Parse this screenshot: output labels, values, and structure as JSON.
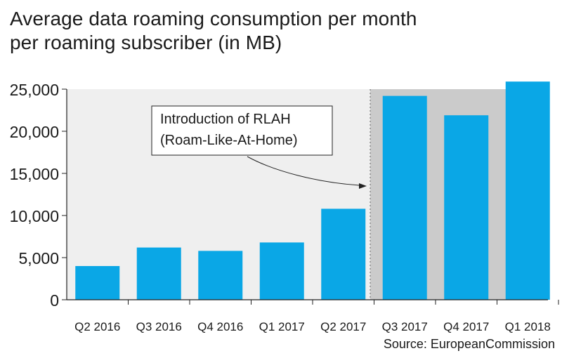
{
  "title_line1": "Average data roaming consumption per month",
  "title_line2": "per roaming subscriber (in MB)",
  "source": "Source: EuropeanCommission",
  "annotation": {
    "line1": "Introduction of RLAH",
    "line2": "(Roam-Like-At-Home)"
  },
  "colors": {
    "bar": "#0aa7e6",
    "pre_background": "#efefef",
    "post_background": "#cbcbcb",
    "axis": "#222222"
  },
  "chart_data": {
    "type": "bar",
    "title": "Average data roaming consumption per month per roaming subscriber (in MB)",
    "categories": [
      "Q2 2016",
      "Q3 2016",
      "Q4 2016",
      "Q1 2017",
      "Q2 2017",
      "Q3 2017",
      "Q4 2017",
      "Q1 2018"
    ],
    "values": [
      4000,
      6200,
      5800,
      6800,
      10800,
      24200,
      21900,
      25900
    ],
    "ylim": [
      0,
      25000
    ],
    "yticks": [
      0,
      5000,
      10000,
      15000,
      20000,
      25000
    ],
    "ytick_labels": [
      "0",
      "5,000",
      "10,000",
      "15,000",
      "20,000",
      "25,000"
    ],
    "xlabel": "",
    "ylabel": "",
    "grid": false,
    "highlight_from_category": "Q3 2017"
  }
}
